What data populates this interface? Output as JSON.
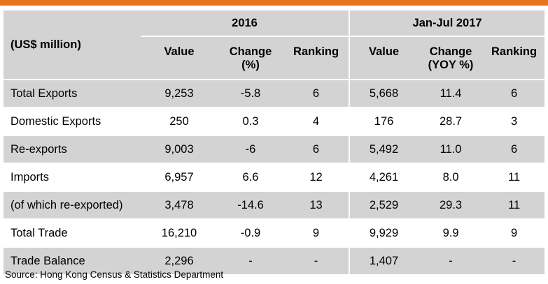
{
  "table": {
    "unit_label": "(US$ million)",
    "period_2016": "2016",
    "period_2017": "Jan-Jul 2017",
    "columns": {
      "value_2016": "Value",
      "change_2016_l1": "Change",
      "change_2016_l2": "(%)",
      "ranking_2016": "Ranking",
      "value_2017": "Value",
      "change_2017_l1": "Change",
      "change_2017_l2": "(YOY %)",
      "ranking_2017": "Ranking"
    },
    "rows": [
      {
        "label": "Total Exports",
        "v16": "9,253",
        "c16": "-5.8",
        "r16": "6",
        "v17": "5,668",
        "c17": "11.4",
        "r17": "6"
      },
      {
        "label": "Domestic Exports",
        "v16": "250",
        "c16": "0.3",
        "r16": "4",
        "v17": "176",
        "c17": "28.7",
        "r17": "3"
      },
      {
        "label": "Re-exports",
        "v16": "9,003",
        "c16": "-6",
        "r16": "6",
        "v17": "5,492",
        "c17": "11.0",
        "r17": "6"
      },
      {
        "label": "Imports",
        "v16": "6,957",
        "c16": "6.6",
        "r16": "12",
        "v17": "4,261",
        "c17": "8.0",
        "r17": "11"
      },
      {
        "label": "(of which re-exported)",
        "v16": "3,478",
        "c16": "-14.6",
        "r16": "13",
        "v17": "2,529",
        "c17": "29.3",
        "r17": "11"
      },
      {
        "label": "Total Trade",
        "v16": "16,210",
        "c16": "-0.9",
        "r16": "9",
        "v17": "9,929",
        "c17": "9.9",
        "r17": "9"
      },
      {
        "label": "Trade Balance",
        "v16": "2,296",
        "c16": "-",
        "r16": "-",
        "v17": "1,407",
        "c17": "-",
        "r17": "-"
      }
    ]
  },
  "source": "Source: Hong Kong Census & Statistics Department"
}
